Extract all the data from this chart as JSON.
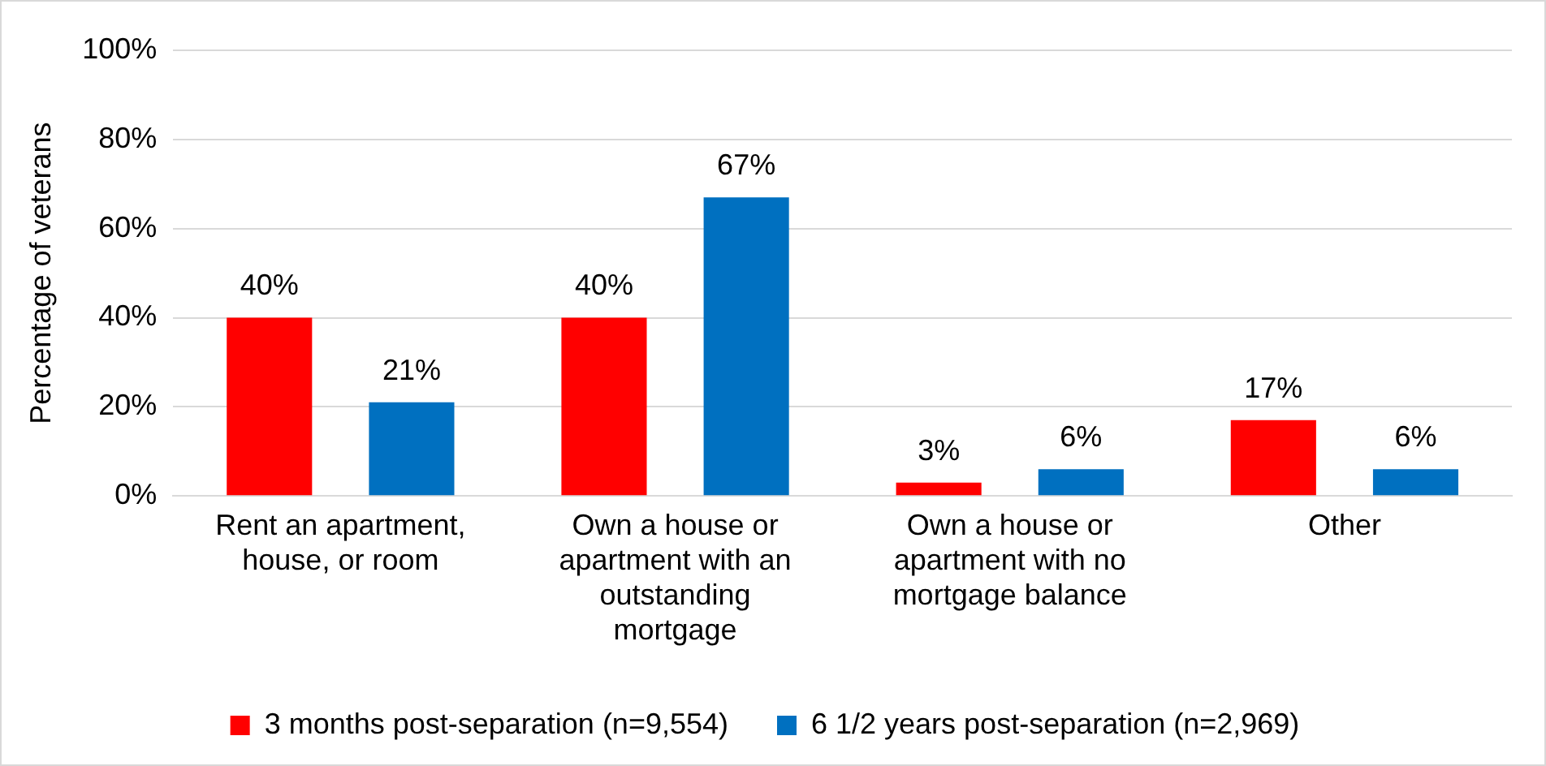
{
  "chart_data": {
    "type": "bar",
    "ylabel": "Percentage of veterans",
    "categories": [
      "Rent an apartment, house, or room",
      "Own a house or apartment with an outstanding mortgage",
      "Own a house or apartment with no mortgage balance",
      "Other"
    ],
    "series": [
      {
        "name": "3 months post-separation (n=9,554)",
        "color": "#ff0000",
        "values": [
          40,
          40,
          3,
          17
        ],
        "value_labels": [
          "40%",
          "40%",
          "3%",
          "17%"
        ]
      },
      {
        "name": "6 1/2 years post-separation (n=2,969)",
        "color": "#0070c0",
        "values": [
          21,
          67,
          6,
          6
        ],
        "value_labels": [
          "21%",
          "67%",
          "6%",
          "6%"
        ]
      }
    ],
    "ylim": [
      0,
      100
    ],
    "yticks": [
      {
        "value": 0,
        "label": "0%"
      },
      {
        "value": 20,
        "label": "20%"
      },
      {
        "value": 40,
        "label": "40%"
      },
      {
        "value": 60,
        "label": "60%"
      },
      {
        "value": 80,
        "label": "80%"
      },
      {
        "value": 100,
        "label": "100%"
      }
    ],
    "grid": "y",
    "legend": "bottom"
  }
}
